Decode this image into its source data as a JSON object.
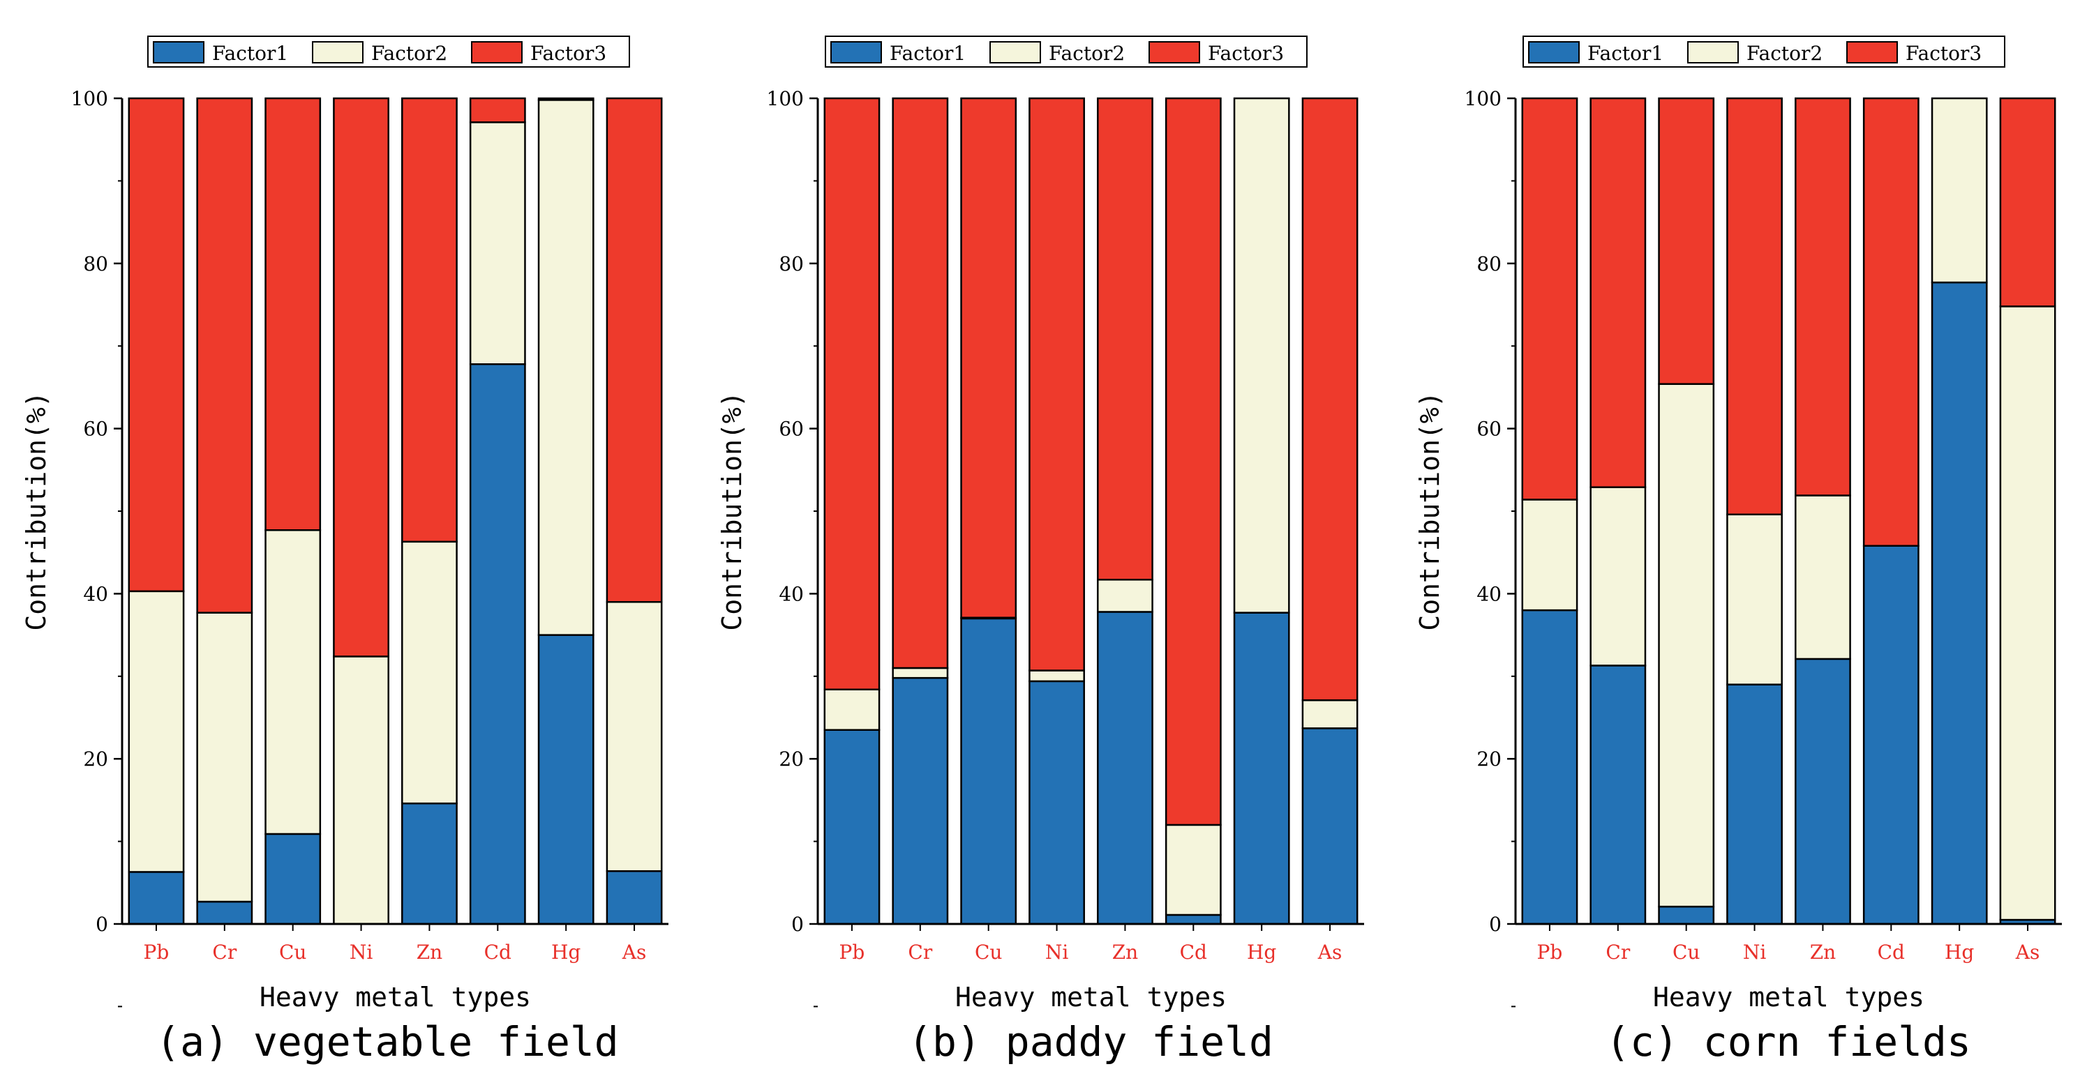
{
  "colors": {
    "factor1": "#2372b5",
    "factor2": "#f5f5dc",
    "factor3": "#ee3a2c",
    "category_label": "#e8302a"
  },
  "chart_data": [
    {
      "type": "bar",
      "stacked": true,
      "caption": "(a) vegetable field",
      "xlabel": "Heavy metal types",
      "ylabel": "Contribution(%)",
      "ylim": [
        0,
        100
      ],
      "yticks": [
        "0",
        "20",
        "40",
        "60",
        "80",
        "100"
      ],
      "categories": [
        "Pb",
        "Cr",
        "Cu",
        "Ni",
        "Zn",
        "Cd",
        "Hg",
        "As"
      ],
      "legend": [
        "Factor1",
        "Factor2",
        "Factor3"
      ],
      "series": [
        {
          "name": "Factor1",
          "values": [
            6.3,
            2.7,
            10.9,
            0.0,
            14.6,
            67.8,
            35.0,
            6.4
          ]
        },
        {
          "name": "Factor2",
          "values": [
            34.0,
            35.0,
            36.8,
            32.4,
            31.7,
            29.3,
            64.8,
            32.6
          ]
        },
        {
          "name": "Factor3",
          "values": [
            59.7,
            62.3,
            52.3,
            67.6,
            53.7,
            2.9,
            0.2,
            61.0
          ]
        }
      ]
    },
    {
      "type": "bar",
      "stacked": true,
      "caption": "(b) paddy field",
      "xlabel": "Heavy metal types",
      "ylabel": "Contribution(%)",
      "ylim": [
        0,
        100
      ],
      "yticks": [
        "0",
        "20",
        "40",
        "60",
        "80",
        "100"
      ],
      "categories": [
        "Pb",
        "Cr",
        "Cu",
        "Ni",
        "Zn",
        "Cd",
        "Hg",
        "As"
      ],
      "legend": [
        "Factor1",
        "Factor2",
        "Factor3"
      ],
      "series": [
        {
          "name": "Factor1",
          "values": [
            23.5,
            29.8,
            37.0,
            29.4,
            37.8,
            1.1,
            37.7,
            23.7
          ]
        },
        {
          "name": "Factor2",
          "values": [
            4.9,
            1.2,
            0.1,
            1.3,
            3.9,
            10.9,
            62.3,
            3.4
          ]
        },
        {
          "name": "Factor3",
          "values": [
            71.6,
            69.0,
            62.9,
            69.3,
            58.3,
            88.0,
            0.0,
            72.9
          ]
        }
      ]
    },
    {
      "type": "bar",
      "stacked": true,
      "caption": "(c) corn fields",
      "xlabel": "Heavy metal types",
      "ylabel": "Contribution(%)",
      "ylim": [
        0,
        100
      ],
      "yticks": [
        "0",
        "20",
        "40",
        "60",
        "80",
        "100"
      ],
      "categories": [
        "Pb",
        "Cr",
        "Cu",
        "Ni",
        "Zn",
        "Cd",
        "Hg",
        "As"
      ],
      "legend": [
        "Factor1",
        "Factor2",
        "Factor3"
      ],
      "series": [
        {
          "name": "Factor1",
          "values": [
            38.0,
            31.3,
            2.1,
            29.0,
            32.1,
            45.8,
            77.7,
            0.5
          ]
        },
        {
          "name": "Factor2",
          "values": [
            13.4,
            21.6,
            63.3,
            20.6,
            19.8,
            0.0,
            22.3,
            74.3
          ]
        },
        {
          "name": "Factor3",
          "values": [
            48.6,
            47.1,
            34.6,
            50.4,
            48.1,
            54.2,
            0.0,
            25.2
          ]
        }
      ]
    }
  ]
}
